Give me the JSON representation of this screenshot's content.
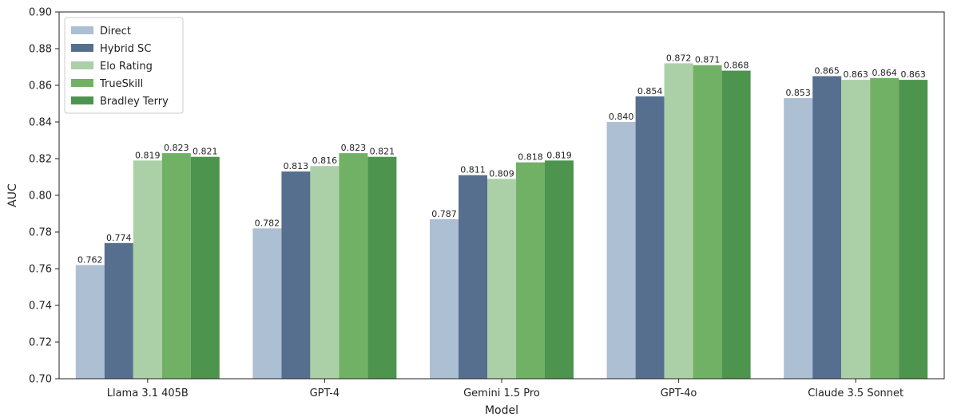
{
  "chart_data": {
    "type": "bar",
    "title": "",
    "xlabel": "Model",
    "ylabel": "AUC",
    "ylim": [
      0.7,
      0.9
    ],
    "yticks": [
      "0.70",
      "0.72",
      "0.74",
      "0.76",
      "0.78",
      "0.80",
      "0.82",
      "0.84",
      "0.86",
      "0.88",
      "0.90"
    ],
    "categories": [
      "Llama 3.1 405B",
      "GPT-4",
      "Gemini 1.5 Pro",
      "GPT-4o",
      "Claude 3.5 Sonnet"
    ],
    "grid": false,
    "legend_position": "top-left",
    "series": [
      {
        "name": "Direct",
        "color": "#adbfd3",
        "values": [
          0.762,
          0.782,
          0.787,
          0.84,
          0.853
        ],
        "labels": [
          "0.762",
          "0.782",
          "0.787",
          "0.840",
          "0.853"
        ]
      },
      {
        "name": "Hybrid SC",
        "color": "#566f8f",
        "values": [
          0.774,
          0.813,
          0.811,
          0.854,
          0.865
        ],
        "labels": [
          "0.774",
          "0.813",
          "0.811",
          "0.854",
          "0.865"
        ]
      },
      {
        "name": "Elo Rating",
        "color": "#abd0a8",
        "values": [
          0.819,
          0.816,
          0.809,
          0.872,
          0.863
        ],
        "labels": [
          "0.819",
          "0.816",
          "0.809",
          "0.872",
          "0.863"
        ]
      },
      {
        "name": "TrueSkill",
        "color": "#71b165",
        "values": [
          0.823,
          0.823,
          0.818,
          0.871,
          0.864
        ],
        "labels": [
          "0.823",
          "0.823",
          "0.818",
          "0.871",
          "0.864"
        ]
      },
      {
        "name": "Bradley Terry",
        "color": "#4d944e",
        "values": [
          0.821,
          0.821,
          0.819,
          0.868,
          0.863
        ],
        "labels": [
          "0.821",
          "0.821",
          "0.819",
          "0.868",
          "0.863"
        ]
      }
    ]
  }
}
